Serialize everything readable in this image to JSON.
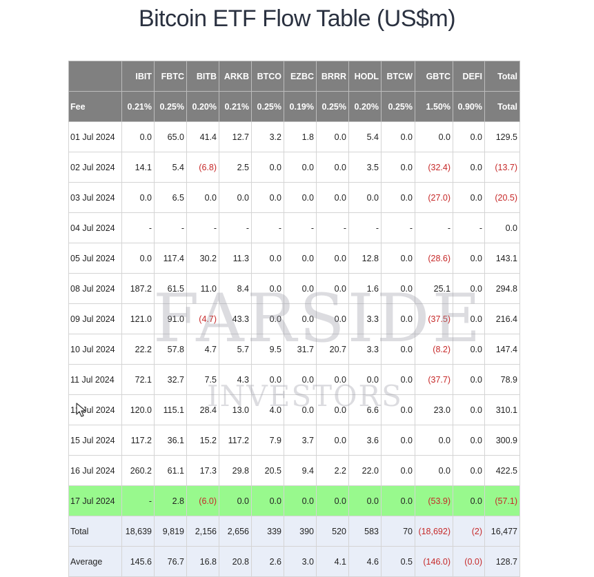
{
  "title": "Bitcoin ETF Flow Table (US$m)",
  "columns": [
    "",
    "IBIT",
    "FBTC",
    "BITB",
    "ARKB",
    "BTCO",
    "EZBC",
    "BRRR",
    "HODL",
    "BTCW",
    "GBTC",
    "DEFI",
    "Total"
  ],
  "fee_row": [
    "Fee",
    "0.21%",
    "0.25%",
    "0.20%",
    "0.21%",
    "0.25%",
    "0.19%",
    "0.25%",
    "0.20%",
    "0.25%",
    "1.50%",
    "0.90%",
    "Total"
  ],
  "rows": [
    {
      "date": "01 Jul 2024",
      "values": [
        "0.0",
        "65.0",
        "41.4",
        "12.7",
        "3.2",
        "1.8",
        "0.0",
        "5.4",
        "0.0",
        "0.0",
        "0.0",
        "129.5"
      ]
    },
    {
      "date": "02 Jul 2024",
      "values": [
        "14.1",
        "5.4",
        "(6.8)",
        "2.5",
        "0.0",
        "0.0",
        "0.0",
        "3.5",
        "0.0",
        "(32.4)",
        "0.0",
        "(13.7)"
      ]
    },
    {
      "date": "03 Jul 2024",
      "values": [
        "0.0",
        "6.5",
        "0.0",
        "0.0",
        "0.0",
        "0.0",
        "0.0",
        "0.0",
        "0.0",
        "(27.0)",
        "0.0",
        "(20.5)"
      ]
    },
    {
      "date": "04 Jul 2024",
      "values": [
        "-",
        "-",
        "-",
        "-",
        "-",
        "-",
        "-",
        "-",
        "-",
        "-",
        "-",
        "0.0"
      ]
    },
    {
      "date": "05 Jul 2024",
      "values": [
        "0.0",
        "117.4",
        "30.2",
        "11.3",
        "0.0",
        "0.0",
        "0.0",
        "12.8",
        "0.0",
        "(28.6)",
        "0.0",
        "143.1"
      ]
    },
    {
      "date": "08 Jul 2024",
      "values": [
        "187.2",
        "61.5",
        "11.0",
        "8.4",
        "0.0",
        "0.0",
        "0.0",
        "1.6",
        "0.0",
        "25.1",
        "0.0",
        "294.8"
      ]
    },
    {
      "date": "09 Jul 2024",
      "values": [
        "121.0",
        "91.0",
        "(4.7)",
        "43.3",
        "0.0",
        "0.0",
        "0.0",
        "3.3",
        "0.0",
        "(37.5)",
        "0.0",
        "216.4"
      ]
    },
    {
      "date": "10 Jul 2024",
      "values": [
        "22.2",
        "57.8",
        "4.7",
        "5.7",
        "9.5",
        "31.7",
        "20.7",
        "3.3",
        "0.0",
        "(8.2)",
        "0.0",
        "147.4"
      ]
    },
    {
      "date": "11 Jul 2024",
      "values": [
        "72.1",
        "32.7",
        "7.5",
        "4.3",
        "0.0",
        "0.0",
        "0.0",
        "0.0",
        "0.0",
        "(37.7)",
        "0.0",
        "78.9"
      ]
    },
    {
      "date": "12 Jul 2024",
      "values": [
        "120.0",
        "115.1",
        "28.4",
        "13.0",
        "4.0",
        "0.0",
        "0.0",
        "6.6",
        "0.0",
        "23.0",
        "0.0",
        "310.1"
      ]
    },
    {
      "date": "15 Jul 2024",
      "values": [
        "117.2",
        "36.1",
        "15.2",
        "117.2",
        "7.9",
        "3.7",
        "0.0",
        "3.6",
        "0.0",
        "0.0",
        "0.0",
        "300.9"
      ]
    },
    {
      "date": "16 Jul 2024",
      "values": [
        "260.2",
        "61.1",
        "17.3",
        "29.8",
        "20.5",
        "9.4",
        "2.2",
        "22.0",
        "0.0",
        "0.0",
        "0.0",
        "422.5"
      ]
    },
    {
      "date": "17 Jul 2024",
      "highlight": true,
      "values": [
        "-",
        "2.8",
        "(6.0)",
        "0.0",
        "0.0",
        "0.0",
        "0.0",
        "0.0",
        "0.0",
        "(53.9)",
        "0.0",
        "(57.1)"
      ]
    }
  ],
  "total_row": {
    "label": "Total",
    "values": [
      "18,639",
      "9,819",
      "2,156",
      "2,656",
      "339",
      "390",
      "520",
      "583",
      "70",
      "(18,692)",
      "(2)",
      "16,477"
    ]
  },
  "average_row": {
    "label": "Average",
    "values": [
      "145.6",
      "76.7",
      "16.8",
      "20.8",
      "2.6",
      "3.0",
      "4.1",
      "4.6",
      "0.5",
      "(146.0)",
      "(0.0)",
      "128.7"
    ]
  },
  "watermark": {
    "main": "FARSIDE",
    "sub": "INVESTORS"
  },
  "colors": {
    "header_bg": "#808080",
    "highlight_bg": "#98f98d",
    "footer_bg": "#e9eef8",
    "negative": "#c62828"
  }
}
